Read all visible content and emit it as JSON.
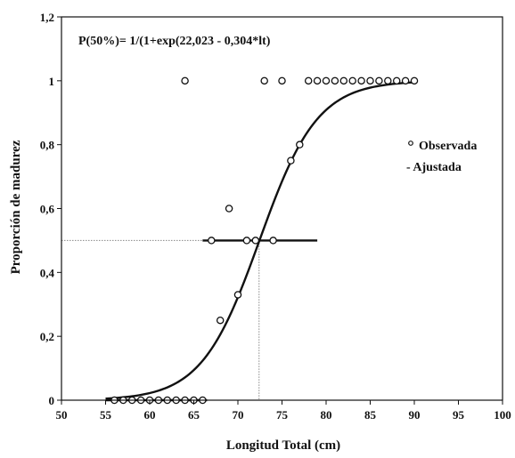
{
  "chart_data": {
    "type": "scatter",
    "formula": "P(50%)= 1/(1+exp(22,023 - 0,304*lt)",
    "xlabel": "Longitud Total (cm)",
    "ylabel": "Proporción de madurez",
    "xlim": [
      50,
      100
    ],
    "ylim": [
      0,
      1.2
    ],
    "x_ticks": [
      "50",
      "55",
      "60",
      "65",
      "70",
      "75",
      "80",
      "85",
      "90",
      "95",
      "100"
    ],
    "y_ticks": [
      "0",
      "0,2",
      "0,4",
      "0,6",
      "0,8",
      "1",
      "1,2"
    ],
    "legend": {
      "observed": "Observada",
      "fitted": "- Ajustada",
      "position": "right"
    },
    "observed": [
      {
        "x": 56,
        "y": 0
      },
      {
        "x": 57,
        "y": 0
      },
      {
        "x": 58,
        "y": 0
      },
      {
        "x": 59,
        "y": 0
      },
      {
        "x": 60,
        "y": 0
      },
      {
        "x": 61,
        "y": 0
      },
      {
        "x": 62,
        "y": 0
      },
      {
        "x": 63,
        "y": 0
      },
      {
        "x": 64,
        "y": 0
      },
      {
        "x": 65,
        "y": 0
      },
      {
        "x": 66,
        "y": 0
      },
      {
        "x": 64,
        "y": 1
      },
      {
        "x": 73,
        "y": 1
      },
      {
        "x": 75,
        "y": 1
      },
      {
        "x": 78,
        "y": 1
      },
      {
        "x": 79,
        "y": 1
      },
      {
        "x": 80,
        "y": 1
      },
      {
        "x": 81,
        "y": 1
      },
      {
        "x": 82,
        "y": 1
      },
      {
        "x": 83,
        "y": 1
      },
      {
        "x": 84,
        "y": 1
      },
      {
        "x": 85,
        "y": 1
      },
      {
        "x": 86,
        "y": 1
      },
      {
        "x": 87,
        "y": 1
      },
      {
        "x": 88,
        "y": 1
      },
      {
        "x": 89,
        "y": 1
      },
      {
        "x": 90,
        "y": 1
      },
      {
        "x": 67,
        "y": 0.5
      },
      {
        "x": 71,
        "y": 0.5
      },
      {
        "x": 72,
        "y": 0.5
      },
      {
        "x": 74,
        "y": 0.5
      },
      {
        "x": 69,
        "y": 0.6
      },
      {
        "x": 68,
        "y": 0.25
      },
      {
        "x": 70,
        "y": 0.33
      },
      {
        "x": 76,
        "y": 0.75
      },
      {
        "x": 77,
        "y": 0.8
      }
    ],
    "fitted": {
      "a": 22.023,
      "b": 0.304,
      "x_range": [
        55,
        90
      ]
    },
    "l50": {
      "x": 72.4,
      "y": 0.5
    },
    "interval": {
      "x_range": [
        66,
        79
      ],
      "y": 0.5
    }
  }
}
